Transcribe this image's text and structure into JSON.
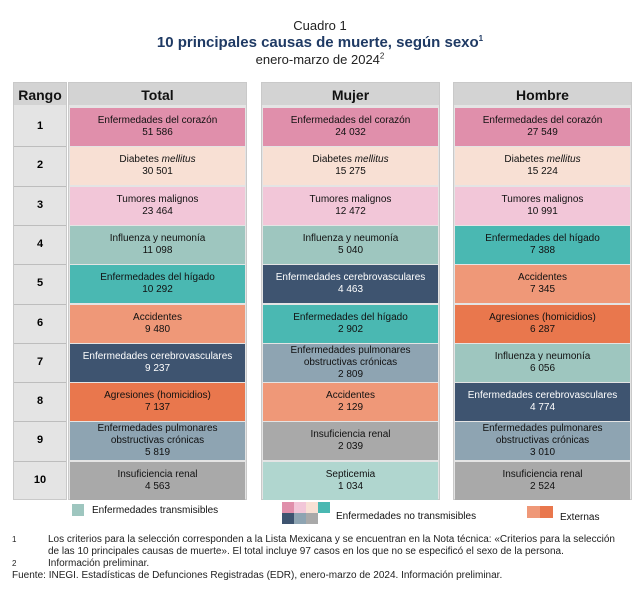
{
  "header": {
    "kicker": "Cuadro 1",
    "title": "10 principales causas de muerte, según sexo",
    "title_sup": "1",
    "period": "enero-marzo de 2024",
    "period_sup": "2"
  },
  "columns": {
    "rank": "Rango",
    "total": "Total",
    "mujer": "Mujer",
    "hombre": "Hombre"
  },
  "ranks": [
    "1",
    "2",
    "3",
    "4",
    "5",
    "6",
    "7",
    "8",
    "9",
    "10"
  ],
  "colors": {
    "corazon": "#e08fab",
    "diabetes": "#f8e0d4",
    "tumores": "#f2c6d8",
    "influenza": "#9ec6bf",
    "higado": "#4ab8b2",
    "cerebro": "#3e5470",
    "accidentes": "#ef9878",
    "homicidios": "#e9774d",
    "pulmonares": "#8ea4b2",
    "renal": "#a9a9a9",
    "septicemia": "#b0d6cf"
  },
  "total": [
    {
      "name": "Enfermedades del corazón",
      "value": "51 586",
      "type": "corazon"
    },
    {
      "name": "Diabetes",
      "italic": "mellitus",
      "value": "30 501",
      "type": "diabetes"
    },
    {
      "name": "Tumores malignos",
      "value": "23 464",
      "type": "tumores"
    },
    {
      "name": "Influenza y neumonía",
      "value": "11 098",
      "type": "influenza"
    },
    {
      "name": "Enfermedades del hígado",
      "value": "10 292",
      "type": "higado"
    },
    {
      "name": "Accidentes",
      "value": "9 480",
      "type": "accidentes"
    },
    {
      "name": "Enfermedades cerebrovasculares",
      "value": "9 237",
      "type": "cerebro"
    },
    {
      "name": "Agresiones (homicidios)",
      "value": "7 137",
      "type": "homicidios"
    },
    {
      "name": "Enfermedades pulmonares obstructivas crónicas",
      "value": "5 819",
      "type": "pulmonares"
    },
    {
      "name": "Insuficiencia renal",
      "value": "4 563",
      "type": "renal"
    }
  ],
  "mujer": [
    {
      "name": "Enfermedades del corazón",
      "value": "24 032",
      "type": "corazon"
    },
    {
      "name": "Diabetes",
      "italic": "mellitus",
      "value": "15 275",
      "type": "diabetes"
    },
    {
      "name": "Tumores malignos",
      "value": "12 472",
      "type": "tumores"
    },
    {
      "name": "Influenza y neumonía",
      "value": "5 040",
      "type": "influenza"
    },
    {
      "name": "Enfermedades cerebrovasculares",
      "value": "4 463",
      "type": "cerebro"
    },
    {
      "name": "Enfermedades del hígado",
      "value": "2 902",
      "type": "higado"
    },
    {
      "name": "Enfermedades pulmonares obstructivas crónicas",
      "value": "2 809",
      "type": "pulmonares"
    },
    {
      "name": "Accidentes",
      "value": "2 129",
      "type": "accidentes"
    },
    {
      "name": "Insuficiencia renal",
      "value": "2 039",
      "type": "renal"
    },
    {
      "name": "Septicemia",
      "value": "1 034",
      "type": "septicemia"
    }
  ],
  "hombre": [
    {
      "name": "Enfermedades del corazón",
      "value": "27 549",
      "type": "corazon"
    },
    {
      "name": "Diabetes",
      "italic": "mellitus",
      "value": "15 224",
      "type": "diabetes"
    },
    {
      "name": "Tumores malignos",
      "value": "10 991",
      "type": "tumores"
    },
    {
      "name": "Enfermedades del hígado",
      "value": "7 388",
      "type": "higado"
    },
    {
      "name": "Accidentes",
      "value": "7 345",
      "type": "accidentes"
    },
    {
      "name": "Agresiones (homicidios)",
      "value": "6 287",
      "type": "homicidios"
    },
    {
      "name": "Influenza y neumonía",
      "value": "6 056",
      "type": "influenza"
    },
    {
      "name": "Enfermedades cerebrovasculares",
      "value": "4 774",
      "type": "cerebro"
    },
    {
      "name": "Enfermedades pulmonares obstructivas crónicas",
      "value": "3 010",
      "type": "pulmonares"
    },
    {
      "name": "Insuficiencia renal",
      "value": "2 524",
      "type": "renal"
    }
  ],
  "legend": {
    "transmisibles": "Enfermedades transmisibles",
    "no_transmisibles": "Enfermedades no transmisibles",
    "externas": "Externas"
  },
  "notes": {
    "n1_mark": "1",
    "n1": "Los criterios para la selección corresponden a la Lista Mexicana y se encuentran en la Nota técnica: «Criterios para la selección de las 10 principales causas de muerte». El total incluye 97 casos en los que no se especificó el sexo de la persona.",
    "n2_mark": "2",
    "n2": "Información preliminar.",
    "fuente": "Fuente: INEGI. Estadísticas de Defunciones Registradas (EDR), enero-marzo de 2024. Información preliminar."
  }
}
